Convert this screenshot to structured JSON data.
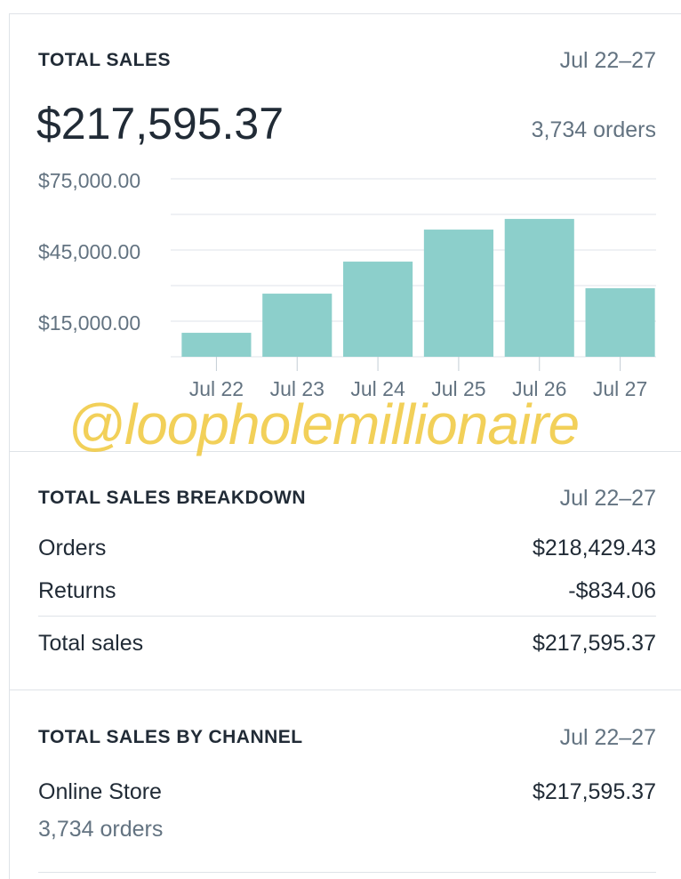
{
  "chart_data": {
    "type": "bar",
    "title": "TOTAL SALES",
    "date_range": "Jul 22–27",
    "total": "$217,595.37",
    "orders": "3,734 orders",
    "categories": [
      "Jul 22",
      "Jul 23",
      "Jul 24",
      "Jul 25",
      "Jul 26",
      "Jul 27"
    ],
    "values": [
      10100,
      26600,
      40100,
      53600,
      58100,
      28900
    ],
    "color": "#8ccfcb",
    "ylim": [
      0,
      75000
    ],
    "yticks": [
      {
        "value": 15000,
        "label": "$15,000.00"
      },
      {
        "value": 45000,
        "label": "$45,000.00"
      },
      {
        "value": 75000,
        "label": "$75,000.00"
      }
    ],
    "minor_yticks": [
      0,
      30000,
      60000
    ],
    "grid": true
  },
  "watermark": "@loopholemillionaire",
  "breakdown": {
    "title": "TOTAL SALES BREAKDOWN",
    "date_range": "Jul 22–27",
    "rows": [
      {
        "label": "Orders",
        "value": "$218,429.43"
      },
      {
        "label": "Returns",
        "value": "-$834.06"
      },
      {
        "label": "Total sales",
        "value": "$217,595.37"
      }
    ]
  },
  "channel": {
    "title": "TOTAL SALES BY CHANNEL",
    "date_range": "Jul 22–27",
    "rows": [
      {
        "label": "Online Store",
        "value": "$217,595.37",
        "detail": "3,734 orders"
      }
    ]
  }
}
